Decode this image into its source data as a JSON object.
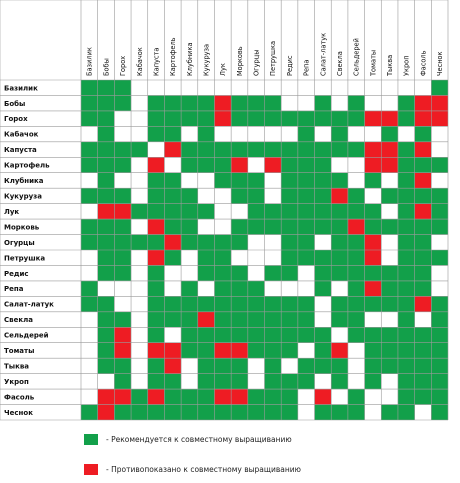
{
  "crops": [
    "Базилик",
    "Бобы",
    "Горох",
    "Кабачок",
    "Капуста",
    "Картофель",
    "Клубника",
    "Кукуруза",
    "Лук",
    "Морковь",
    "Огурцы",
    "Петрушка",
    "Редис",
    "Репа",
    "Салат-латук",
    "Свекла",
    "Сельдерей",
    "Томаты",
    "Тыква",
    "Укроп",
    "Фасоль",
    "Чеснок"
  ],
  "column_labels": [
    "Базилик",
    "Бобы",
    "Горох",
    "Кабачок",
    "Капуста",
    "Картофель",
    "Клубника",
    "Кукуруза",
    "Лук",
    "Морковь",
    "Огурцы",
    "Петрушка",
    "Редис",
    "Репа",
    "Салат-латук",
    "Свекла",
    "Сельдерей",
    "Томаты",
    "Тыква",
    "Укроп",
    "Фасоль",
    "Чеснок"
  ],
  "colors": {
    "recommended": "#12a04a",
    "forbidden": "#ee1c23",
    "neutral": "#ffffff",
    "grid": "#9a9a9a"
  },
  "matrix": [
    "GGG..................G",
    "GGG.GGGGRGGG..G.G..GRR",
    "GG..GGGGRGGGGGGGGRRGRR",
    ".G..GG.G.....G.G..G.G.",
    "GGGG.RGGGGGGGGGGGRRGR.",
    "GGG.R.GGGR.RGGG..RRGGG",
    ".G..GG..GGG.GGGG.G.GR.",
    "GGG.GGG..GG.GGGRG.GGGG",
    ".RRGGGGG..GGGGGGGG.GRG",
    "GGG.RGG..GGGGGGGRGGGGG",
    "GGGGGRGGGG..GG.GGR.GG.",
    ".GG.RG.GG...GGGGGR.GGG",
    ".GG.G..GGG.GG.GGGGGGG.",
    "G...G.G.GGG...G.GRGGG.",
    "GG..GGGGGGGGGG.GGGGGRG",
    ".GG.GGGRGGGGGG.GG..G.G",
    ".GR.G.GGGGGGGGG.GGGGGG",
    ".GR.RRGGRRGGG.GR.GGGGG",
    ".GG.GR.GGG.G.GGG.GGGGG",
    "..G.GG.GGG.GGG.G.G.GGG",
    ".RRGRGGGRRGGG.R.G..GGG",
    "GRGGGGGGGGGGG.GGG.GG.G"
  ],
  "legend": [
    {
      "color": "#12a04a",
      "text": "-  Рекомендуется к совместному выращиванию"
    },
    {
      "color": "#ee1c23",
      "text": "-  Противопоказано к совместному выращиванию"
    }
  ]
}
